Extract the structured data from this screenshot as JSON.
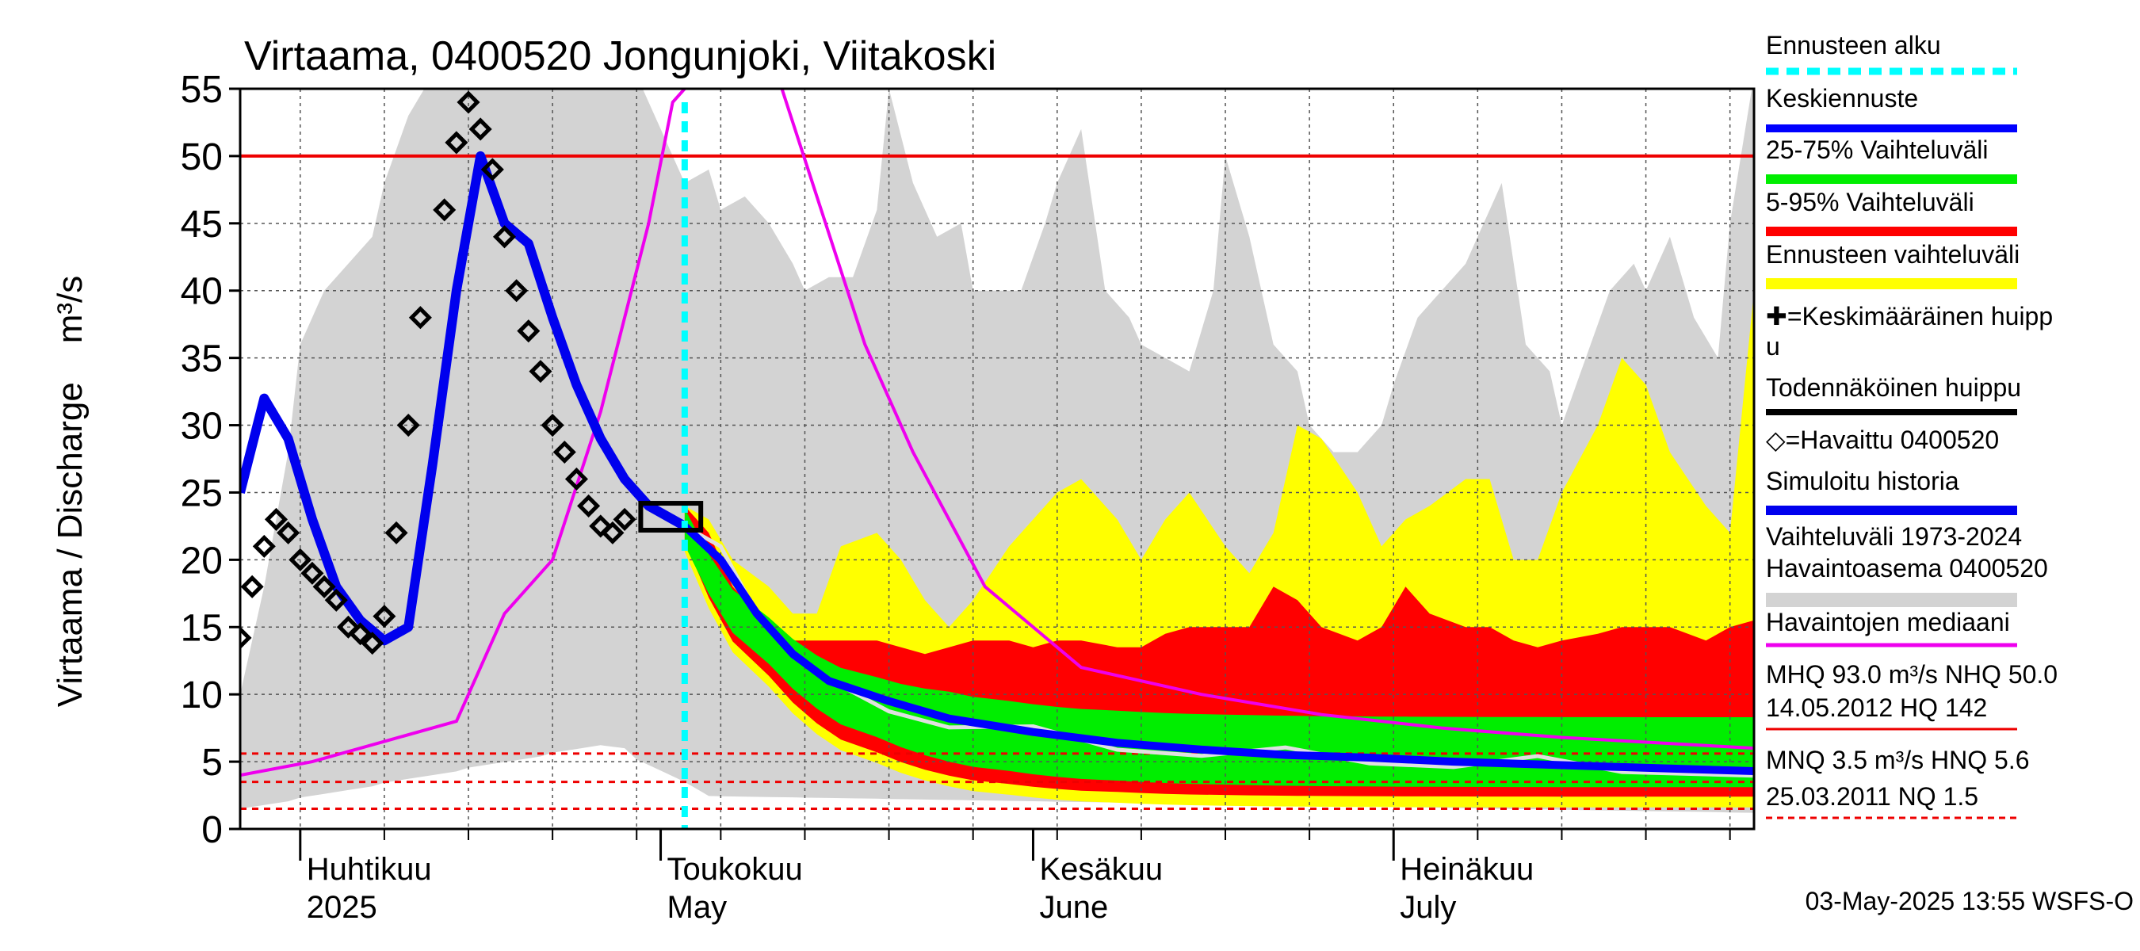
{
  "chart_data": {
    "type": "line",
    "title": "Virtaama, 0400520 Jongunjoki, Viitakoski",
    "ylabel": "Virtaama / Discharge    m³/s",
    "ylim": [
      0,
      55
    ],
    "y_ticks": [
      0,
      5,
      10,
      15,
      20,
      25,
      30,
      35,
      40,
      45,
      50,
      55
    ],
    "x_range": [
      "2025-03-27",
      "2025-07-31"
    ],
    "month_labels": [
      {
        "fi": "Huhtikuu",
        "en": "2025",
        "date": "2025-04-01"
      },
      {
        "fi": "Toukokuu",
        "en": "May",
        "date": "2025-05-01"
      },
      {
        "fi": "Kesäkuu",
        "en": "June",
        "date": "2025-06-01"
      },
      {
        "fi": "Heinäkuu",
        "en": "July",
        "date": "2025-07-01"
      }
    ],
    "grid": true,
    "legend_position": "right",
    "forecast_start": "2025-05-03",
    "colors": {
      "range_hist": "#d3d3d3",
      "forecast_range": "#ffff00",
      "p5_95": "#ff0000",
      "p25_75": "#00ee00",
      "mean_forecast": "#0000ff",
      "simulated": "#0000ee",
      "median": "#ee00ee",
      "observed": "#000000",
      "forecast_start": "#00ffff",
      "reference": "#ee0000"
    },
    "reference_lines": {
      "solid": [
        50.0
      ],
      "dashed": [
        5.6,
        3.5,
        1.5
      ]
    },
    "legend": [
      "Ennusteen alku",
      "Keskiennuste",
      "25-75% Vaihteluväli",
      "5-95% Vaihteluväli",
      "Ennusteen vaihteluväli",
      "✚=Keskimääräinen huippu",
      "Todennäköinen huippu",
      "◇=Havaittu 0400520",
      "Simuloitu historia",
      "Vaihteluväli 1973-2024",
      " Havaintoasema 0400520",
      "Havaintojen mediaani",
      "MHQ 93.0 m³/s NHQ 50.0",
      "14.05.2012 HQ  142",
      "MNQ  3.5 m³/s HNQ  5.6",
      "25.03.2011 NQ  1.5"
    ],
    "footer": "03-May-2025 13:55 WSFS-O",
    "series": [
      {
        "name": "Simuloitu historia",
        "x": [
          "2025-03-27",
          "2025-03-29",
          "2025-03-31",
          "2025-04-02",
          "2025-04-04",
          "2025-04-06",
          "2025-04-08",
          "2025-04-10",
          "2025-04-12",
          "2025-04-14",
          "2025-04-16",
          "2025-04-18",
          "2025-04-20",
          "2025-04-22",
          "2025-04-24",
          "2025-04-26",
          "2025-04-28",
          "2025-04-30",
          "2025-05-02",
          "2025-05-03"
        ],
        "y": [
          25,
          32,
          29,
          23,
          18,
          15.5,
          14,
          15,
          27,
          40,
          50,
          45,
          43.5,
          38,
          33,
          29,
          26,
          24,
          23,
          22.5
        ]
      },
      {
        "name": "Keskiennuste",
        "x": [
          "2025-05-03",
          "2025-05-06",
          "2025-05-09",
          "2025-05-12",
          "2025-05-15",
          "2025-05-20",
          "2025-05-25",
          "2025-06-01",
          "2025-06-08",
          "2025-06-15",
          "2025-06-22",
          "2025-06-29",
          "2025-07-06",
          "2025-07-13",
          "2025-07-20",
          "2025-07-31"
        ],
        "y": [
          22.5,
          20,
          16,
          13,
          11,
          9.5,
          8.2,
          7.2,
          6.4,
          5.9,
          5.5,
          5.3,
          5.0,
          4.8,
          4.6,
          4.3
        ]
      },
      {
        "name": "Havaintojen mediaani",
        "x": [
          "2025-03-27",
          "2025-04-02",
          "2025-04-08",
          "2025-04-14",
          "2025-04-18",
          "2025-04-22",
          "2025-04-26",
          "2025-04-30",
          "2025-05-02",
          "2025-05-04",
          "2025-05-07",
          "2025-05-10",
          "2025-05-14",
          "2025-05-18",
          "2025-05-22",
          "2025-05-28",
          "2025-06-05",
          "2025-06-15",
          "2025-06-25",
          "2025-07-05",
          "2025-07-15",
          "2025-07-31"
        ],
        "y": [
          4,
          5,
          6.5,
          8,
          16,
          20,
          31,
          45,
          54,
          56,
          60,
          58,
          47,
          36,
          28,
          18,
          12,
          10,
          8.5,
          7.5,
          6.8,
          6
        ]
      },
      {
        "name": "Havaittu 0400520",
        "x": [
          "2025-03-27",
          "2025-03-28",
          "2025-03-29",
          "2025-03-30",
          "2025-03-31",
          "2025-04-01",
          "2025-04-02",
          "2025-04-03",
          "2025-04-04",
          "2025-04-05",
          "2025-04-06",
          "2025-04-07",
          "2025-04-08",
          "2025-04-09",
          "2025-04-10",
          "2025-04-11",
          "2025-04-13",
          "2025-04-14",
          "2025-04-15",
          "2025-04-16",
          "2025-04-17",
          "2025-04-18",
          "2025-04-19",
          "2025-04-20",
          "2025-04-21",
          "2025-04-22",
          "2025-04-23",
          "2025-04-24",
          "2025-04-25",
          "2025-04-26",
          "2025-04-27",
          "2025-04-28",
          "2025-04-29",
          "2025-04-30",
          "2025-05-01"
        ],
        "y": [
          14.2,
          18,
          21,
          23,
          22,
          20,
          19,
          18,
          17,
          15,
          14.5,
          13.8,
          15.8,
          22,
          30,
          38,
          46,
          51,
          54,
          52,
          49,
          44,
          40,
          37,
          34,
          30,
          28,
          26,
          24,
          22.5,
          22,
          23,
          null,
          null,
          null
        ]
      }
    ]
  }
}
